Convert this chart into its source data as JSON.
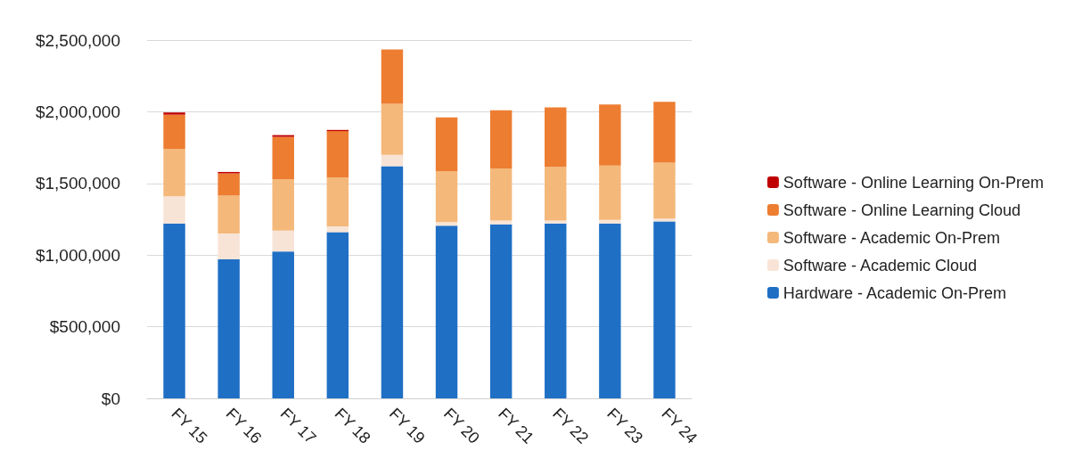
{
  "chart_data": {
    "type": "bar",
    "stacked": true,
    "categories": [
      "FY 15",
      "FY 16",
      "FY 17",
      "FY 18",
      "FY 19",
      "FY 20",
      "FY 21",
      "FY 22",
      "FY 23",
      "FY 24"
    ],
    "series": [
      {
        "name": "Hardware - Academic On-Prem",
        "color": "#1f6fc5",
        "values": [
          1220000,
          970000,
          1025000,
          1160000,
          1620000,
          1205000,
          1215000,
          1220000,
          1220000,
          1235000
        ]
      },
      {
        "name": "Software - Academic Cloud",
        "color": "#f8e4d6",
        "values": [
          190000,
          180000,
          145000,
          40000,
          80000,
          25000,
          25000,
          20000,
          25000,
          20000
        ]
      },
      {
        "name": "Software - Academic On-Prem",
        "color": "#f4b87a",
        "values": [
          330000,
          265000,
          360000,
          340000,
          355000,
          355000,
          365000,
          375000,
          380000,
          390000
        ]
      },
      {
        "name": "Software - Online Learning Cloud",
        "color": "#ed7d31",
        "values": [
          240000,
          155000,
          295000,
          325000,
          380000,
          375000,
          405000,
          415000,
          425000,
          425000
        ]
      },
      {
        "name": "Software - Online Learning On-Prem",
        "color": "#c00000",
        "values": [
          15000,
          10000,
          12000,
          8000,
          0,
          0,
          0,
          0,
          0,
          0
        ]
      }
    ],
    "ylim": [
      0,
      2500000
    ],
    "yticks": [
      {
        "value": 0,
        "label": "$0"
      },
      {
        "value": 500000,
        "label": "$500,000"
      },
      {
        "value": 1000000,
        "label": "$1,000,000"
      },
      {
        "value": 1500000,
        "label": "$1,500,000"
      },
      {
        "value": 2000000,
        "label": "$2,000,000"
      },
      {
        "value": 2500000,
        "label": "$2,500,000"
      }
    ],
    "grid": "y",
    "legend": "right"
  }
}
